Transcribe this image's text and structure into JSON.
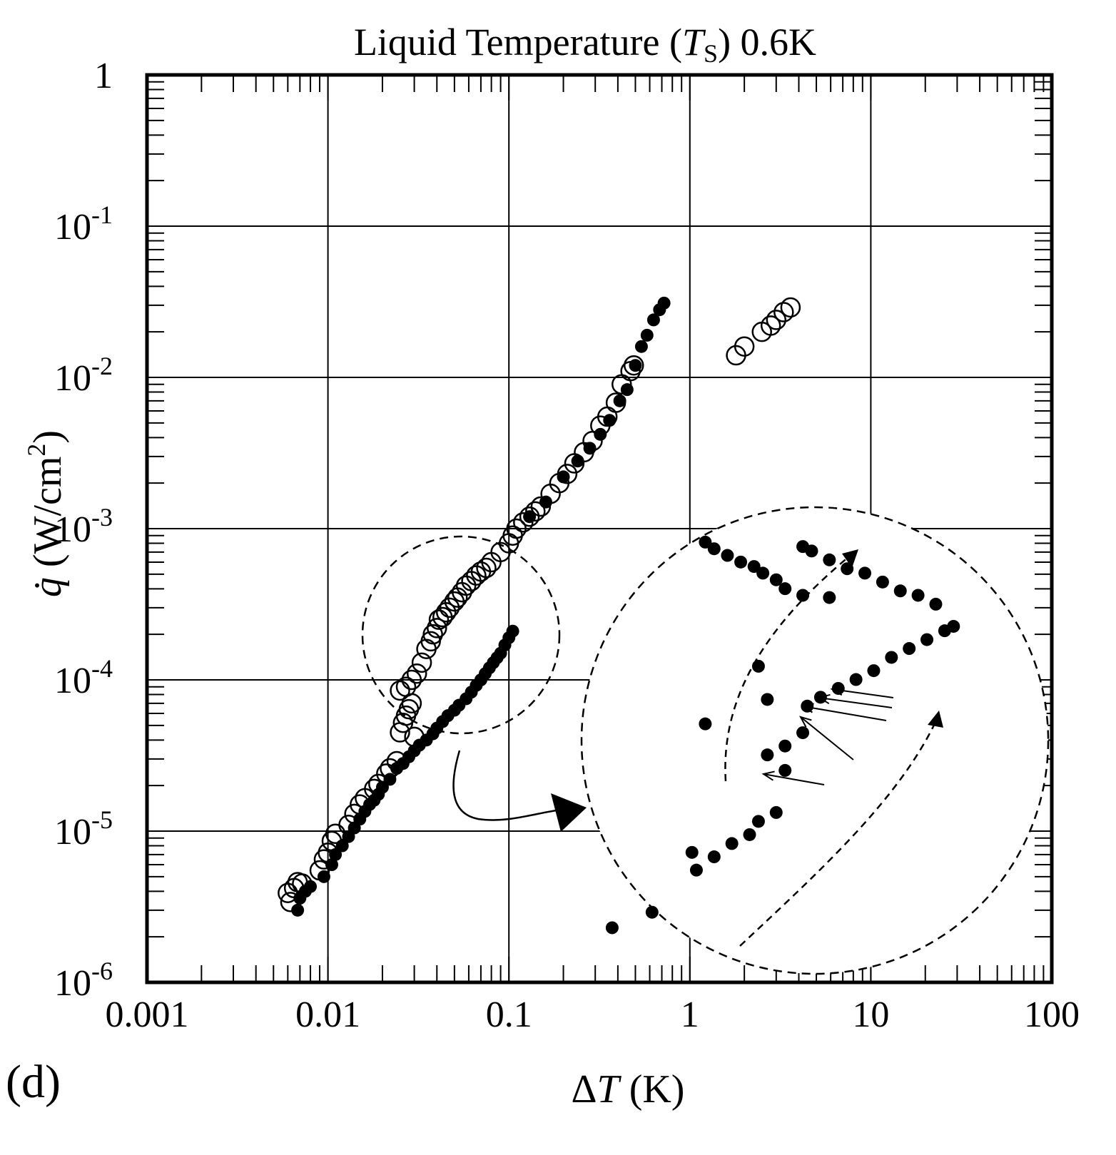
{
  "chart_data": {
    "type": "scatter",
    "title": "Liquid Temperature (",
    "title_var": "T",
    "title_sub": "S",
    "title_tail": ") 0.6K",
    "panel_label": "(d)",
    "xlabel_prefix": "Δ",
    "xlabel_var": "T",
    "xlabel_unit": " (K)",
    "ylabel_var": "q̇",
    "ylabel_unit": " (W/cm",
    "ylabel_sup": "2",
    "ylabel_tail": ")",
    "x_scale": "log",
    "y_scale": "log",
    "xlim": [
      0.001,
      100
    ],
    "ylim": [
      1e-06,
      1
    ],
    "x_ticks": [
      {
        "value": 0.001,
        "label": "0.001"
      },
      {
        "value": 0.01,
        "label": "0.01"
      },
      {
        "value": 0.1,
        "label": "0.1"
      },
      {
        "value": 1,
        "label": "1"
      },
      {
        "value": 10,
        "label": "10"
      },
      {
        "value": 100,
        "label": "100"
      }
    ],
    "y_ticks": [
      {
        "value": 1,
        "base": "1",
        "exp": ""
      },
      {
        "value": 0.1,
        "base": "10",
        "exp": "-1"
      },
      {
        "value": 0.01,
        "base": "10",
        "exp": "-2"
      },
      {
        "value": 0.001,
        "base": "10",
        "exp": "-3"
      },
      {
        "value": 0.0001,
        "base": "10",
        "exp": "-4"
      },
      {
        "value": 1e-05,
        "base": "10",
        "exp": "-5"
      },
      {
        "value": 1e-06,
        "base": "10",
        "exp": "-6"
      }
    ],
    "grid": true,
    "series": [
      {
        "marker": "open-circle",
        "points": [
          [
            0.006,
            3.9e-06
          ],
          [
            0.0062,
            3.4e-06
          ],
          [
            0.0065,
            4.2e-06
          ],
          [
            0.0068,
            4.6e-06
          ],
          [
            0.0072,
            4.5e-06
          ],
          [
            0.009,
            5.5e-06
          ],
          [
            0.0095,
            6.5e-06
          ],
          [
            0.01,
            7.2e-06
          ],
          [
            0.0105,
            8.6e-06
          ],
          [
            0.011,
            9.6e-06
          ],
          [
            0.013,
            1.1e-05
          ],
          [
            0.014,
            1.3e-05
          ],
          [
            0.015,
            1.5e-05
          ],
          [
            0.016,
            1.65e-05
          ],
          [
            0.018,
            1.9e-05
          ],
          [
            0.019,
            2.05e-05
          ],
          [
            0.021,
            2.4e-05
          ],
          [
            0.022,
            2.6e-05
          ],
          [
            0.024,
            2.9e-05
          ],
          [
            0.025,
            4.5e-05
          ],
          [
            0.026,
            5.2e-05
          ],
          [
            0.027,
            5.8e-05
          ],
          [
            0.028,
            6.4e-05
          ],
          [
            0.029,
            7e-05
          ],
          [
            0.03,
            4.2e-05
          ],
          [
            0.025,
            8.5e-05
          ],
          [
            0.027,
            9e-05
          ],
          [
            0.029,
            0.0001
          ],
          [
            0.031,
            0.00011
          ],
          [
            0.033,
            0.00013
          ],
          [
            0.035,
            0.00016
          ],
          [
            0.037,
            0.00018
          ],
          [
            0.038,
            0.0002
          ],
          [
            0.04,
            0.00022
          ],
          [
            0.041,
            0.00025
          ],
          [
            0.043,
            0.00026
          ],
          [
            0.045,
            0.00028
          ],
          [
            0.047,
            0.0003
          ],
          [
            0.05,
            0.00033
          ],
          [
            0.052,
            0.00035
          ],
          [
            0.055,
            0.00038
          ],
          [
            0.058,
            0.00042
          ],
          [
            0.062,
            0.00045
          ],
          [
            0.066,
            0.00049
          ],
          [
            0.07,
            0.00052
          ],
          [
            0.075,
            0.00055
          ],
          [
            0.08,
            0.0006
          ],
          [
            0.09,
            0.0007
          ],
          [
            0.1,
            0.0008
          ],
          [
            0.105,
            0.0009
          ],
          [
            0.11,
            0.001
          ],
          [
            0.12,
            0.0011
          ],
          [
            0.13,
            0.0012
          ],
          [
            0.14,
            0.0013
          ],
          [
            0.15,
            0.0014
          ],
          [
            0.17,
            0.0017
          ],
          [
            0.19,
            0.002
          ],
          [
            0.21,
            0.0023
          ],
          [
            0.23,
            0.0027
          ],
          [
            0.26,
            0.0032
          ],
          [
            0.29,
            0.0038
          ],
          [
            0.32,
            0.0048
          ],
          [
            0.35,
            0.0055
          ],
          [
            0.39,
            0.0068
          ],
          [
            0.42,
            0.009
          ],
          [
            0.47,
            0.011
          ],
          [
            0.49,
            0.012
          ],
          [
            1.8,
            0.014
          ],
          [
            2.0,
            0.016
          ],
          [
            2.5,
            0.02
          ],
          [
            2.8,
            0.022
          ],
          [
            3.0,
            0.024
          ],
          [
            3.3,
            0.027
          ],
          [
            3.6,
            0.029
          ]
        ]
      },
      {
        "marker": "filled-circle",
        "points": [
          [
            0.0068,
            3e-06
          ],
          [
            0.007,
            3.6e-06
          ],
          [
            0.0075,
            4e-06
          ],
          [
            0.008,
            4.3e-06
          ],
          [
            0.0095,
            5e-06
          ],
          [
            0.0105,
            6e-06
          ],
          [
            0.011,
            7e-06
          ],
          [
            0.012,
            8e-06
          ],
          [
            0.013,
            9.2e-06
          ],
          [
            0.014,
            1.05e-05
          ],
          [
            0.015,
            1.2e-05
          ],
          [
            0.016,
            1.35e-05
          ],
          [
            0.017,
            1.5e-05
          ],
          [
            0.018,
            1.6e-05
          ],
          [
            0.019,
            1.75e-05
          ],
          [
            0.02,
            1.95e-05
          ],
          [
            0.022,
            2.2e-05
          ],
          [
            0.024,
            2.6e-05
          ],
          [
            0.026,
            2.8e-05
          ],
          [
            0.028,
            3.1e-05
          ],
          [
            0.03,
            3.4e-05
          ],
          [
            0.032,
            3.7e-05
          ],
          [
            0.035,
            4e-05
          ],
          [
            0.038,
            4.4e-05
          ],
          [
            0.04,
            4.8e-05
          ],
          [
            0.043,
            5.3e-05
          ],
          [
            0.046,
            5.8e-05
          ],
          [
            0.05,
            6.3e-05
          ],
          [
            0.053,
            6.8e-05
          ],
          [
            0.058,
            7.5e-05
          ],
          [
            0.062,
            8.3e-05
          ],
          [
            0.066,
            9.2e-05
          ],
          [
            0.07,
            0.0001
          ],
          [
            0.074,
            0.00011
          ],
          [
            0.078,
            0.00012
          ],
          [
            0.082,
            0.00013
          ],
          [
            0.086,
            0.00014
          ],
          [
            0.09,
            0.00015
          ],
          [
            0.095,
            0.00017
          ],
          [
            0.1,
            0.00019
          ],
          [
            0.105,
            0.00021
          ],
          [
            0.13,
            0.0012
          ],
          [
            0.16,
            0.0015
          ],
          [
            0.2,
            0.0022
          ],
          [
            0.24,
            0.0028
          ],
          [
            0.28,
            0.0034
          ],
          [
            0.32,
            0.0042
          ],
          [
            0.36,
            0.0052
          ],
          [
            0.41,
            0.007
          ],
          [
            0.45,
            0.0083
          ],
          [
            0.5,
            0.012
          ],
          [
            0.54,
            0.016
          ],
          [
            0.58,
            0.019
          ],
          [
            0.63,
            0.024
          ],
          [
            0.68,
            0.028
          ],
          [
            0.72,
            0.031
          ]
        ]
      }
    ],
    "inset": {
      "description_points_filled": true,
      "points": [
        [
          0.115,
          0.12
        ],
        [
          0.16,
          0.155
        ],
        [
          0.205,
          0.29
        ],
        [
          0.21,
          0.25
        ],
        [
          0.23,
          0.28
        ],
        [
          0.25,
          0.31
        ],
        [
          0.27,
          0.33
        ],
        [
          0.28,
          0.36
        ],
        [
          0.3,
          0.38
        ],
        [
          0.29,
          0.51
        ],
        [
          0.31,
          0.53
        ],
        [
          0.31,
          0.475
        ],
        [
          0.22,
          0.58
        ],
        [
          0.28,
          0.71
        ],
        [
          0.29,
          0.635
        ],
        [
          0.33,
          0.56
        ],
        [
          0.335,
          0.62
        ],
        [
          0.35,
          0.64
        ],
        [
          0.37,
          0.66
        ],
        [
          0.39,
          0.68
        ],
        [
          0.41,
          0.7
        ],
        [
          0.43,
          0.73
        ],
        [
          0.45,
          0.75
        ],
        [
          0.47,
          0.77
        ],
        [
          0.49,
          0.79
        ],
        [
          0.5,
          0.8
        ],
        [
          0.48,
          0.85
        ],
        [
          0.46,
          0.87
        ],
        [
          0.44,
          0.88
        ],
        [
          0.42,
          0.9
        ],
        [
          0.4,
          0.92
        ],
        [
          0.38,
          0.93
        ],
        [
          0.36,
          0.95
        ],
        [
          0.34,
          0.97
        ],
        [
          0.33,
          0.98
        ],
        [
          0.36,
          0.865
        ],
        [
          0.33,
          0.87
        ],
        [
          0.31,
          0.885
        ],
        [
          0.3,
          0.905
        ],
        [
          0.285,
          0.92
        ],
        [
          0.275,
          0.935
        ],
        [
          0.26,
          0.945
        ],
        [
          0.245,
          0.96
        ],
        [
          0.23,
          0.975
        ],
        [
          0.22,
          0.99
        ]
      ]
    }
  }
}
